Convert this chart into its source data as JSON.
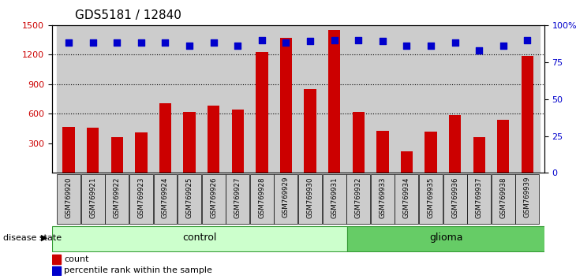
{
  "title": "GDS5181 / 12840",
  "samples": [
    "GSM769920",
    "GSM769921",
    "GSM769922",
    "GSM769923",
    "GSM769924",
    "GSM769925",
    "GSM769926",
    "GSM769927",
    "GSM769928",
    "GSM769929",
    "GSM769930",
    "GSM769931",
    "GSM769932",
    "GSM769933",
    "GSM769934",
    "GSM769935",
    "GSM769936",
    "GSM769937",
    "GSM769938",
    "GSM769939"
  ],
  "bar_counts": [
    470,
    460,
    360,
    415,
    710,
    620,
    680,
    640,
    1230,
    1370,
    850,
    1450,
    620,
    430,
    220,
    420,
    590,
    360,
    540,
    1190
  ],
  "percentile_ranks": [
    88,
    88,
    88,
    88,
    88,
    86,
    88,
    86,
    90,
    88,
    89,
    90,
    90,
    89,
    86,
    86,
    88,
    83,
    86,
    90
  ],
  "ylim_left": [
    0,
    1500
  ],
  "ylim_right": [
    0,
    100
  ],
  "yticks_left": [
    300,
    600,
    900,
    1200,
    1500
  ],
  "yticks_right": [
    0,
    25,
    50,
    75,
    100
  ],
  "ytick_labels_right": [
    "0",
    "25",
    "50",
    "75",
    "100%"
  ],
  "gridlines": [
    600,
    900,
    1200
  ],
  "bar_color": "#cc0000",
  "dot_color": "#0000cc",
  "control_color": "#ccffcc",
  "glioma_color": "#66cc66",
  "bg_color": "#cccccc",
  "n_control": 12,
  "n_glioma": 8,
  "disease_label": "disease state",
  "control_label": "control",
  "glioma_label": "glioma",
  "legend_count": "count",
  "legend_percentile": "percentile rank within the sample",
  "title_fontsize": 11,
  "tick_fontsize": 8,
  "label_fontsize": 8,
  "banner_fontsize": 9
}
